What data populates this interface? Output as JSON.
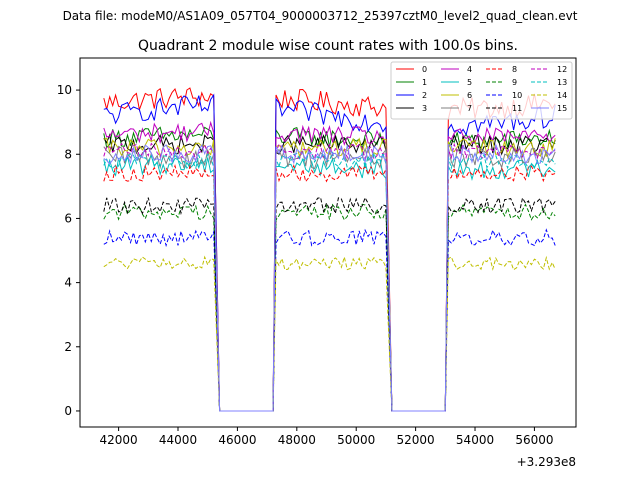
{
  "suptitle": "Data file: modeM0/AS1A09_057T04_9000003712_25397cztM0_level2_quad_clean.evt",
  "chart_data": {
    "type": "line",
    "title": "Quadrant 2 module wise count rates with 100.0s bins.",
    "xlabel": "",
    "ylabel": "",
    "x_offset_label": "+3.293e8",
    "xlim": [
      40700,
      57400
    ],
    "ylim": [
      -0.5,
      11.0
    ],
    "x_ticks": [
      42000,
      44000,
      46000,
      48000,
      50000,
      52000,
      54000,
      56000
    ],
    "x_tick_labels": [
      "42000",
      "44000",
      "46000",
      "48000",
      "50000",
      "52000",
      "54000",
      "56000"
    ],
    "y_ticks": [
      0,
      2,
      4,
      6,
      8,
      10
    ],
    "y_tick_labels": [
      "0",
      "2",
      "4",
      "6",
      "8",
      "10"
    ],
    "grid": false,
    "legend_position": "top-right",
    "segments": [
      {
        "start": 41500,
        "end": 45200,
        "drop_to": 45400
      },
      {
        "rise_from": 47200,
        "start": 47300,
        "end": 51000,
        "drop_to": 51200
      },
      {
        "rise_from": 53000,
        "start": 53100,
        "end": 56700
      }
    ],
    "bin_width": 100,
    "series": [
      {
        "name": "0",
        "color": "#ff0000",
        "dash": "solid",
        "level": 9.6,
        "spread": 0.35,
        "trend": 0.2
      },
      {
        "name": "1",
        "color": "#008000",
        "dash": "solid",
        "level": 8.5,
        "spread": 0.3,
        "trend": 0.1
      },
      {
        "name": "2",
        "color": "#0000ff",
        "dash": "solid",
        "level": 9.2,
        "spread": 0.35,
        "trend": 0.3
      },
      {
        "name": "3",
        "color": "#000000",
        "dash": "solid",
        "level": 8.3,
        "spread": 0.3,
        "trend": 0.0
      },
      {
        "name": "4",
        "color": "#bf00bf",
        "dash": "solid",
        "level": 8.6,
        "spread": 0.3,
        "trend": 0.1
      },
      {
        "name": "5",
        "color": "#00bfbf",
        "dash": "solid",
        "level": 7.6,
        "spread": 0.3,
        "trend": 0.1
      },
      {
        "name": "6",
        "color": "#bfbf00",
        "dash": "solid",
        "level": 8.2,
        "spread": 0.3,
        "trend": 0.0
      },
      {
        "name": "7",
        "color": "#808080",
        "dash": "solid",
        "level": 7.9,
        "spread": 0.35,
        "trend": 0.0
      },
      {
        "name": "8",
        "color": "#ff0000",
        "dash": "dashed",
        "level": 7.4,
        "spread": 0.25,
        "trend": 0.0
      },
      {
        "name": "9",
        "color": "#008000",
        "dash": "dashed",
        "level": 6.2,
        "spread": 0.25,
        "trend": 0.0
      },
      {
        "name": "10",
        "color": "#0000ff",
        "dash": "dashed",
        "level": 5.4,
        "spread": 0.25,
        "trend": 0.0
      },
      {
        "name": "11",
        "color": "#000000",
        "dash": "dashed",
        "level": 6.4,
        "spread": 0.25,
        "trend": 0.0
      },
      {
        "name": "12",
        "color": "#bf00bf",
        "dash": "dashed",
        "level": 8.1,
        "spread": 0.25,
        "trend": 0.0
      },
      {
        "name": "13",
        "color": "#00bfbf",
        "dash": "dashed",
        "level": 7.8,
        "spread": 0.25,
        "trend": 0.0
      },
      {
        "name": "14",
        "color": "#bfbf00",
        "dash": "dashed",
        "level": 4.6,
        "spread": 0.2,
        "trend": 0.0
      },
      {
        "name": "15",
        "color": "#8080ff",
        "dash": "solid",
        "level": 8.0,
        "spread": 0.3,
        "trend": 0.0
      }
    ]
  }
}
